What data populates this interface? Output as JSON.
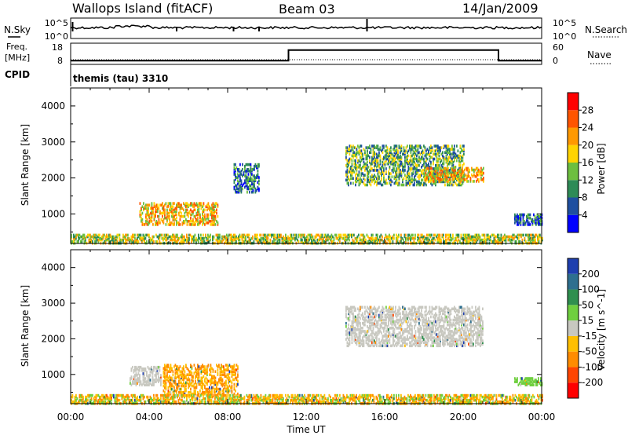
{
  "header": {
    "station": "Wallops Island (fitACF)",
    "beam": "Beam 03",
    "date": "14/Jan/2009"
  },
  "noise_panel": {
    "label": "N.Sky",
    "left_ticks": [
      "10^5",
      "10^0"
    ],
    "right_ticks": [
      "10^5",
      "10^0"
    ],
    "right_label": "N.Search"
  },
  "freq_panel": {
    "label_top": "Freq.",
    "label_unit": "[MHz]",
    "left_ticks": [
      "18",
      "8"
    ],
    "right_ticks": [
      "60",
      "0"
    ],
    "right_label": "Nave"
  },
  "cpid_panel": {
    "label": "CPID",
    "program": "themis (tau) 3310"
  },
  "power_panel": {
    "ylabel": "Slant Range [km]",
    "yticks": [
      "4000",
      "3000",
      "2000",
      "1000"
    ],
    "colorbar_label": "Power [dB]",
    "colorbar_ticks": [
      "28",
      "24",
      "20",
      "16",
      "12",
      "8",
      "4"
    ],
    "colors": [
      "#0000ff",
      "#1f4fa0",
      "#2e8b57",
      "#6dbf3f",
      "#ffd400",
      "#ff9900",
      "#ff5500",
      "#ff0000"
    ]
  },
  "velocity_panel": {
    "ylabel": "Slant Range [km]",
    "yticks": [
      "4000",
      "3000",
      "2000",
      "1000"
    ],
    "colorbar_label": "Velocity [m s^-1]",
    "colorbar_ticks": [
      "200",
      "100",
      "50",
      "15",
      "-15",
      "-50",
      "-100",
      "-200"
    ],
    "colors": [
      "#1f3faf",
      "#2e6f8f",
      "#2f8f4f",
      "#6fcf3f",
      "#c8c8c0",
      "#ffbf00",
      "#ff8c00",
      "#ff4500",
      "#ff0000"
    ]
  },
  "x_axis": {
    "label": "Time UT",
    "ticks": [
      "00:00",
      "04:00",
      "08:00",
      "12:00",
      "16:00",
      "20:00",
      "00:00"
    ]
  },
  "chart_data": [
    {
      "type": "line",
      "title": "N.Sky",
      "x": [
        0,
        2,
        4,
        6,
        8,
        10,
        12,
        14,
        16,
        18,
        20,
        22,
        24
      ],
      "series": [
        {
          "values": [
            200,
            400,
            300,
            250,
            200,
            180,
            150,
            160,
            200,
            180,
            170,
            160,
            150
          ]
        }
      ],
      "ylim": [
        "10^0",
        "10^5"
      ]
    },
    {
      "type": "line",
      "title": "Freq. / Nave",
      "x": [
        0,
        11.1,
        11.1,
        21.8,
        21.8,
        24
      ],
      "series": [
        {
          "name": "Freq.",
          "values": [
            10.5,
            10.5,
            15.5,
            15.5,
            10.5,
            10.5
          ]
        }
      ],
      "ylim": [
        8,
        18
      ]
    },
    {
      "type": "heatmap",
      "title": "Power [dB]",
      "xlim": [
        "00:00",
        "24:00"
      ],
      "ylim": [
        180,
        4500
      ],
      "regions": [
        {
          "t_start": 3.5,
          "t_end": 7.5,
          "range_start": 700,
          "range_end": 1300,
          "value": 20
        },
        {
          "t_start": 8.3,
          "t_end": 9.6,
          "range_start": 1600,
          "range_end": 2400,
          "value": 8
        },
        {
          "t_start": 14.0,
          "t_end": 20.0,
          "range_start": 1800,
          "range_end": 2900,
          "value": 14
        },
        {
          "t_start": 18.0,
          "t_end": 21.0,
          "range_start": 1900,
          "range_end": 2300,
          "value": 20
        },
        {
          "t_start": 22.6,
          "t_end": 24.0,
          "range_start": 700,
          "range_end": 1000,
          "value": 8
        },
        {
          "t_start": 0.0,
          "t_end": 24.0,
          "range_start": 180,
          "range_end": 450,
          "value": 16
        }
      ]
    },
    {
      "type": "heatmap",
      "title": "Velocity [m s^-1]",
      "xlim": [
        "00:00",
        "24:00"
      ],
      "ylim": [
        180,
        4500
      ],
      "regions": [
        {
          "t_start": 3.0,
          "t_end": 4.6,
          "range_start": 700,
          "range_end": 1200,
          "value": 0
        },
        {
          "t_start": 4.7,
          "t_end": 8.5,
          "range_start": 400,
          "range_end": 1300,
          "value": -50
        },
        {
          "t_start": 14.0,
          "t_end": 21.0,
          "range_start": 1800,
          "range_end": 2900,
          "value": 0
        },
        {
          "t_start": 22.6,
          "t_end": 24.0,
          "range_start": 700,
          "range_end": 900,
          "value": 30
        },
        {
          "t_start": 0.0,
          "t_end": 24.0,
          "range_start": 180,
          "range_end": 450,
          "value": -30
        }
      ]
    }
  ]
}
